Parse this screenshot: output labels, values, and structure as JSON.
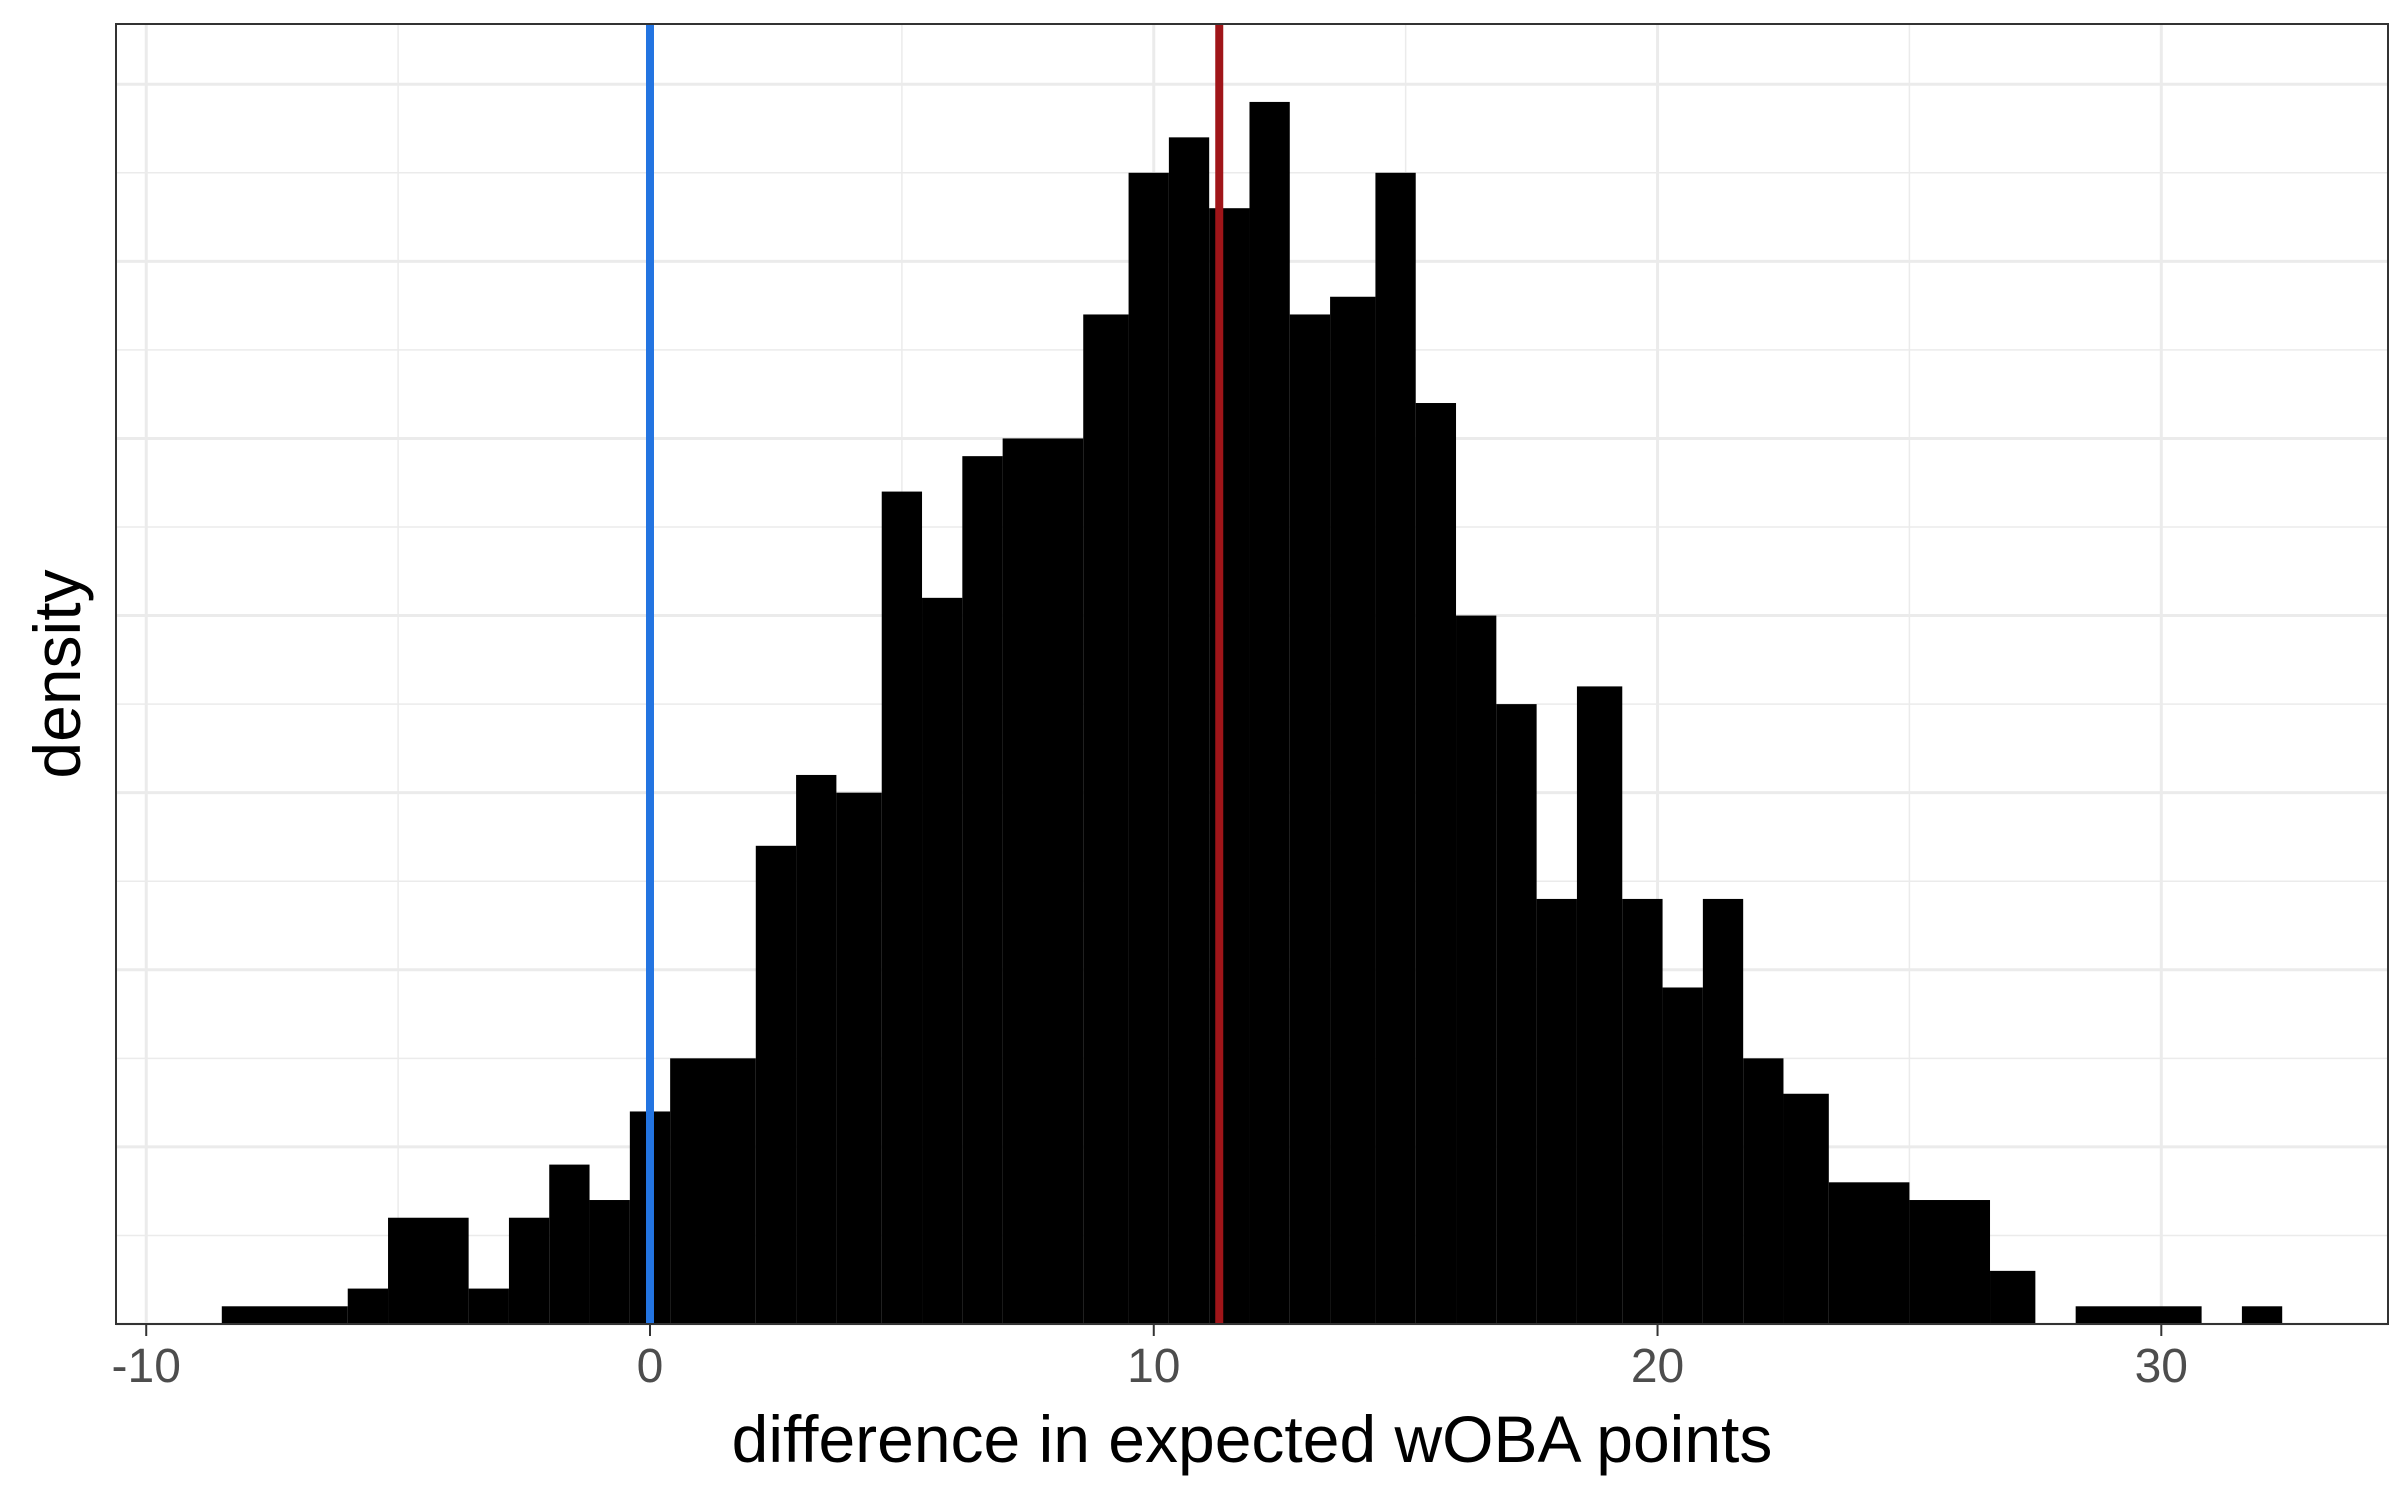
{
  "chart_data": {
    "type": "histogram",
    "title": "",
    "xlabel": "difference in expected wOBA points",
    "ylabel": "density",
    "xlim": [
      -10.6,
      34.5
    ],
    "ylim": [
      0,
      0.0734
    ],
    "x_ticks": [
      -10,
      0,
      10,
      20,
      30
    ],
    "x_tick_labels": [
      "-10",
      "0",
      "10",
      "20",
      "30"
    ],
    "y_tick_labels_shown": false,
    "grid": true,
    "legend": "none",
    "bin_width": 0.82,
    "bins": [
      {
        "x0": -8.5,
        "x1": -6.0,
        "density": 0.001
      },
      {
        "x0": -6.0,
        "x1": -5.2,
        "density": 0.002
      },
      {
        "x0": -5.2,
        "x1": -3.6,
        "density": 0.006
      },
      {
        "x0": -3.6,
        "x1": -2.8,
        "density": 0.002
      },
      {
        "x0": -2.8,
        "x1": -2.0,
        "density": 0.006
      },
      {
        "x0": -2.0,
        "x1": -1.2,
        "density": 0.009
      },
      {
        "x0": -1.2,
        "x1": -0.4,
        "density": 0.007
      },
      {
        "x0": -0.4,
        "x1": 0.4,
        "density": 0.012
      },
      {
        "x0": 0.4,
        "x1": 2.1,
        "density": 0.015
      },
      {
        "x0": 2.1,
        "x1": 2.9,
        "density": 0.027
      },
      {
        "x0": 2.9,
        "x1": 3.7,
        "density": 0.031
      },
      {
        "x0": 3.7,
        "x1": 4.6,
        "density": 0.03
      },
      {
        "x0": 4.6,
        "x1": 5.4,
        "density": 0.047
      },
      {
        "x0": 5.4,
        "x1": 6.2,
        "density": 0.041
      },
      {
        "x0": 6.2,
        "x1": 7.0,
        "density": 0.049
      },
      {
        "x0": 7.0,
        "x1": 8.6,
        "density": 0.05
      },
      {
        "x0": 8.6,
        "x1": 9.5,
        "density": 0.057
      },
      {
        "x0": 9.5,
        "x1": 10.3,
        "density": 0.065
      },
      {
        "x0": 10.3,
        "x1": 11.1,
        "density": 0.067
      },
      {
        "x0": 11.1,
        "x1": 11.9,
        "density": 0.063
      },
      {
        "x0": 11.9,
        "x1": 12.7,
        "density": 0.069
      },
      {
        "x0": 12.7,
        "x1": 13.5,
        "density": 0.057
      },
      {
        "x0": 13.5,
        "x1": 14.4,
        "density": 0.058
      },
      {
        "x0": 14.4,
        "x1": 15.2,
        "density": 0.065
      },
      {
        "x0": 15.2,
        "x1": 16.0,
        "density": 0.052
      },
      {
        "x0": 16.0,
        "x1": 16.8,
        "density": 0.04
      },
      {
        "x0": 16.8,
        "x1": 17.6,
        "density": 0.035
      },
      {
        "x0": 17.6,
        "x1": 18.4,
        "density": 0.024
      },
      {
        "x0": 18.4,
        "x1": 19.3,
        "density": 0.036
      },
      {
        "x0": 19.3,
        "x1": 20.1,
        "density": 0.024
      },
      {
        "x0": 20.1,
        "x1": 20.9,
        "density": 0.019
      },
      {
        "x0": 20.9,
        "x1": 21.7,
        "density": 0.024
      },
      {
        "x0": 21.7,
        "x1": 22.5,
        "density": 0.015
      },
      {
        "x0": 22.5,
        "x1": 23.4,
        "density": 0.013
      },
      {
        "x0": 23.4,
        "x1": 25.0,
        "density": 0.008
      },
      {
        "x0": 25.0,
        "x1": 26.6,
        "density": 0.007
      },
      {
        "x0": 26.6,
        "x1": 27.5,
        "density": 0.003
      },
      {
        "x0": 28.3,
        "x1": 30.8,
        "density": 0.001
      },
      {
        "x0": 31.6,
        "x1": 32.4,
        "density": 0.001
      }
    ],
    "reference_lines": [
      {
        "x": 0,
        "color": "#2374e1"
      },
      {
        "x": 11.3,
        "color": "#a01519"
      }
    ]
  },
  "colors": {
    "bars": "#000000",
    "grid": "#ebebeb",
    "panel_border": "#333333"
  }
}
